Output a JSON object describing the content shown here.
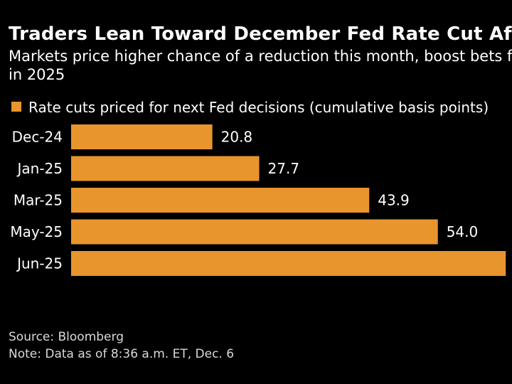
{
  "title": "Traders Lean Toward December Fed Rate Cut After Jobs Data",
  "subtitle_line1": "Markets price higher chance of a reduction this month, boost bets for cuts",
  "subtitle_line2": "in 2025",
  "footer": {
    "source": "Source: Bloomberg",
    "note": "Note: Data as of 8:36 a.m. ET, Dec. 6"
  },
  "colors": {
    "bar": "#E8952E",
    "background": "#000000",
    "text": "#ffffff"
  },
  "chart_data": {
    "type": "bar",
    "orientation": "horizontal",
    "title": "Traders Lean Toward December Fed Rate Cut After Jobs Data",
    "legend": [
      "Rate cuts priced for next Fed decisions (cumulative basis points)"
    ],
    "categories": [
      "Dec-24",
      "Jan-25",
      "Mar-25",
      "May-25",
      "Jun-25"
    ],
    "series": [
      {
        "name": "Rate cuts priced for next Fed decisions (cumulative basis points)",
        "values": [
          20.8,
          27.7,
          43.9,
          54.0,
          64.0
        ],
        "labels": [
          "20.8",
          "27.7",
          "43.9",
          "54.0",
          ""
        ]
      }
    ],
    "xlim": [
      0,
      65
    ],
    "xlabel": "",
    "ylabel": "",
    "grid": false,
    "legend_position": "top-left"
  }
}
